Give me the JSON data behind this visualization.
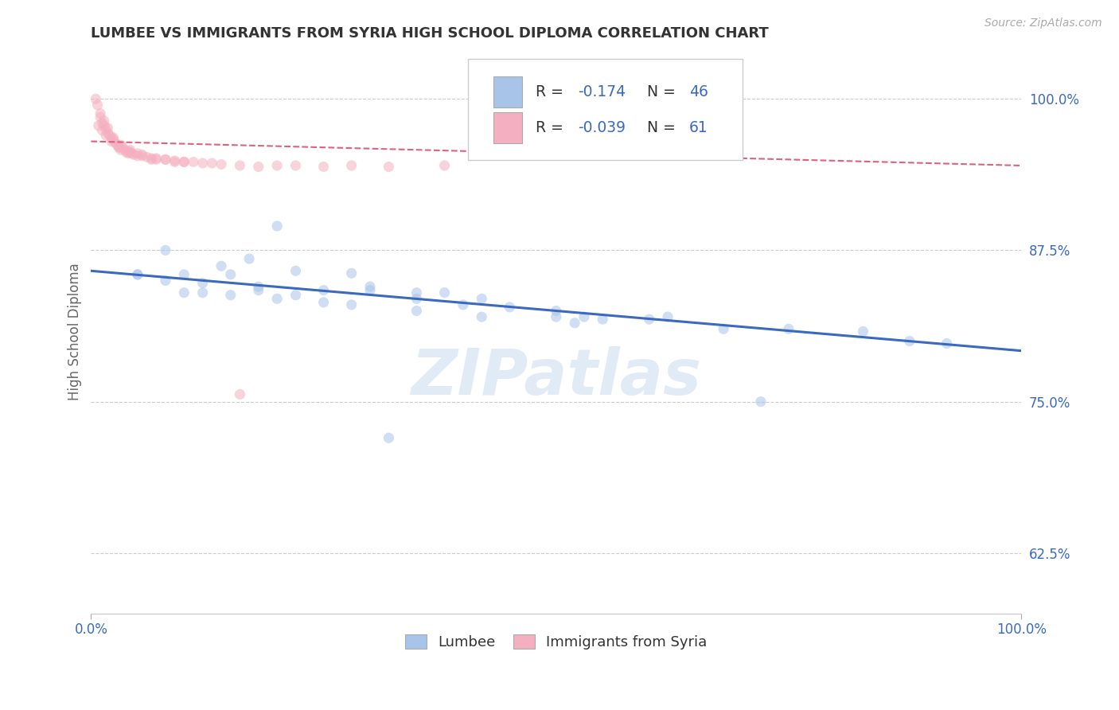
{
  "title": "LUMBEE VS IMMIGRANTS FROM SYRIA HIGH SCHOOL DIPLOMA CORRELATION CHART",
  "source_text": "Source: ZipAtlas.com",
  "ylabel": "High School Diploma",
  "legend_blue_label": "Lumbee",
  "legend_pink_label": "Immigrants from Syria",
  "r_blue": -0.174,
  "n_blue": 46,
  "r_pink": -0.039,
  "n_pink": 61,
  "blue_color": "#a8c4e8",
  "pink_color": "#f4b0c0",
  "blue_line_color": "#3a6abf",
  "pink_line_color": "#e06080",
  "watermark": "ZIPatlas",
  "xlim": [
    0.0,
    1.0
  ],
  "ylim": [
    0.575,
    1.04
  ],
  "yticks": [
    0.625,
    0.75,
    0.875,
    1.0
  ],
  "ytick_labels": [
    "62.5%",
    "75.0%",
    "87.5%",
    "100.0%"
  ],
  "grid_color": "#cccccc",
  "background_color": "#ffffff",
  "title_color": "#333333",
  "axis_label_color": "#666666",
  "tick_color": "#3a6abf",
  "marker_size": 90,
  "marker_alpha": 0.55,
  "title_fontsize": 13,
  "tick_fontsize": 12,
  "ylabel_fontsize": 12,
  "blue_line_y_start": 0.858,
  "blue_line_y_end": 0.792,
  "pink_line_y_start": 0.965,
  "pink_line_y_end": 0.945,
  "blue_scatter_x": [
    0.08,
    0.2,
    0.05,
    0.1,
    0.14,
    0.17,
    0.22,
    0.28,
    0.35,
    0.15,
    0.18,
    0.25,
    0.3,
    0.38,
    0.42,
    0.5,
    0.53,
    0.62,
    0.88,
    0.1,
    0.12,
    0.15,
    0.2,
    0.25,
    0.3,
    0.35,
    0.4,
    0.45,
    0.5,
    0.55,
    0.6,
    0.68,
    0.75,
    0.83,
    0.92,
    0.05,
    0.08,
    0.12,
    0.18,
    0.22,
    0.28,
    0.35,
    0.42,
    0.52,
    0.32,
    0.72
  ],
  "blue_scatter_y": [
    0.875,
    0.895,
    0.855,
    0.855,
    0.862,
    0.868,
    0.858,
    0.856,
    0.84,
    0.855,
    0.845,
    0.842,
    0.845,
    0.84,
    0.835,
    0.825,
    0.82,
    0.82,
    0.8,
    0.84,
    0.84,
    0.838,
    0.835,
    0.832,
    0.842,
    0.835,
    0.83,
    0.828,
    0.82,
    0.818,
    0.818,
    0.81,
    0.81,
    0.808,
    0.798,
    0.855,
    0.85,
    0.848,
    0.842,
    0.838,
    0.83,
    0.825,
    0.82,
    0.815,
    0.72,
    0.75
  ],
  "pink_scatter_x": [
    0.005,
    0.007,
    0.01,
    0.012,
    0.014,
    0.016,
    0.018,
    0.02,
    0.022,
    0.024,
    0.026,
    0.028,
    0.03,
    0.032,
    0.034,
    0.036,
    0.038,
    0.04,
    0.042,
    0.044,
    0.046,
    0.05,
    0.055,
    0.06,
    0.065,
    0.07,
    0.08,
    0.09,
    0.1,
    0.11,
    0.12,
    0.14,
    0.16,
    0.18,
    0.2,
    0.22,
    0.25,
    0.28,
    0.32,
    0.38,
    0.008,
    0.012,
    0.016,
    0.022,
    0.03,
    0.04,
    0.05,
    0.065,
    0.08,
    0.1,
    0.01,
    0.014,
    0.018,
    0.024,
    0.032,
    0.042,
    0.055,
    0.07,
    0.09,
    0.13,
    0.16
  ],
  "pink_scatter_y": [
    1.0,
    0.995,
    0.985,
    0.98,
    0.978,
    0.975,
    0.972,
    0.97,
    0.968,
    0.966,
    0.964,
    0.962,
    0.96,
    0.958,
    0.96,
    0.958,
    0.956,
    0.955,
    0.956,
    0.955,
    0.954,
    0.955,
    0.953,
    0.952,
    0.95,
    0.95,
    0.95,
    0.948,
    0.948,
    0.948,
    0.947,
    0.946,
    0.945,
    0.944,
    0.945,
    0.945,
    0.944,
    0.945,
    0.944,
    0.945,
    0.978,
    0.974,
    0.97,
    0.965,
    0.96,
    0.957,
    0.953,
    0.951,
    0.95,
    0.948,
    0.988,
    0.982,
    0.976,
    0.968,
    0.962,
    0.958,
    0.954,
    0.951,
    0.949,
    0.947,
    0.756
  ]
}
